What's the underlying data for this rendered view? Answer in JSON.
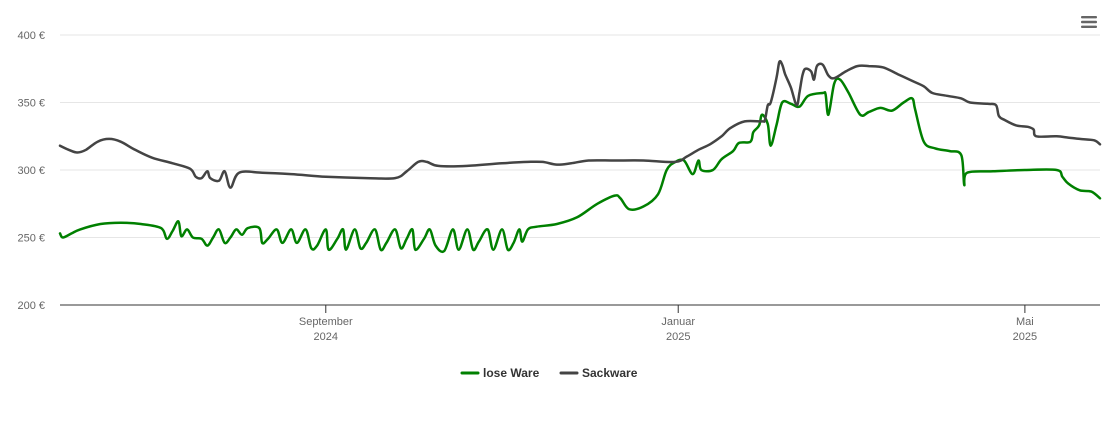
{
  "chart_data": {
    "type": "line",
    "y_axis": {
      "min": 200,
      "max": 400,
      "ticks": [
        200,
        250,
        300,
        350,
        400
      ],
      "unit_suffix": " €"
    },
    "x_axis": {
      "start": "2024-06-01",
      "end": "2025-05-27",
      "ticks": [
        {
          "date": "2024-09-01",
          "label_line1": "September",
          "label_line2": "2024"
        },
        {
          "date": "2025-01-01",
          "label_line1": "Januar",
          "label_line2": "2025"
        },
        {
          "date": "2025-05-01",
          "label_line1": "Mai",
          "label_line2": "2025"
        }
      ]
    },
    "grid": {
      "horizontal": true,
      "vertical": false
    },
    "legend": {
      "position": "bottom-center"
    },
    "series": [
      {
        "name": "lose Ware",
        "color": "#008000",
        "points": [
          [
            "2024-06-01",
            253
          ],
          [
            "2024-06-02",
            250
          ],
          [
            "2024-06-05",
            253
          ],
          [
            "2024-06-08",
            256
          ],
          [
            "2024-06-15",
            260
          ],
          [
            "2024-06-22",
            261
          ],
          [
            "2024-06-29",
            260
          ],
          [
            "2024-07-06",
            257
          ],
          [
            "2024-07-08",
            249
          ],
          [
            "2024-07-10",
            255
          ],
          [
            "2024-07-12",
            262
          ],
          [
            "2024-07-13",
            251
          ],
          [
            "2024-07-15",
            256
          ],
          [
            "2024-07-17",
            250
          ],
          [
            "2024-07-20",
            249
          ],
          [
            "2024-07-22",
            244
          ],
          [
            "2024-07-24",
            250
          ],
          [
            "2024-07-26",
            256
          ],
          [
            "2024-07-28",
            246
          ],
          [
            "2024-07-30",
            250
          ],
          [
            "2024-08-01",
            256
          ],
          [
            "2024-08-03",
            252
          ],
          [
            "2024-08-05",
            257
          ],
          [
            "2024-08-09",
            257
          ],
          [
            "2024-08-10",
            246
          ],
          [
            "2024-08-12",
            249
          ],
          [
            "2024-08-15",
            256
          ],
          [
            "2024-08-17",
            246
          ],
          [
            "2024-08-20",
            256
          ],
          [
            "2024-08-22",
            246
          ],
          [
            "2024-08-25",
            256
          ],
          [
            "2024-08-27",
            242
          ],
          [
            "2024-08-29",
            244
          ],
          [
            "2024-09-01",
            256
          ],
          [
            "2024-09-02",
            241
          ],
          [
            "2024-09-05",
            249
          ],
          [
            "2024-09-07",
            256
          ],
          [
            "2024-09-08",
            241
          ],
          [
            "2024-09-11",
            256
          ],
          [
            "2024-09-13",
            242
          ],
          [
            "2024-09-15",
            246
          ],
          [
            "2024-09-18",
            256
          ],
          [
            "2024-09-20",
            241
          ],
          [
            "2024-09-22",
            246
          ],
          [
            "2024-09-25",
            256
          ],
          [
            "2024-09-27",
            242
          ],
          [
            "2024-09-29",
            249
          ],
          [
            "2024-10-01",
            256
          ],
          [
            "2024-10-02",
            241
          ],
          [
            "2024-10-05",
            249
          ],
          [
            "2024-10-07",
            256
          ],
          [
            "2024-10-09",
            244
          ],
          [
            "2024-10-12",
            240
          ],
          [
            "2024-10-15",
            256
          ],
          [
            "2024-10-17",
            241
          ],
          [
            "2024-10-20",
            256
          ],
          [
            "2024-10-22",
            241
          ],
          [
            "2024-10-24",
            247
          ],
          [
            "2024-10-27",
            256
          ],
          [
            "2024-10-29",
            241
          ],
          [
            "2024-11-01",
            256
          ],
          [
            "2024-11-03",
            241
          ],
          [
            "2024-11-05",
            246
          ],
          [
            "2024-11-07",
            256
          ],
          [
            "2024-11-08",
            247
          ],
          [
            "2024-11-10",
            256
          ],
          [
            "2024-11-13",
            258
          ],
          [
            "2024-11-20",
            260
          ],
          [
            "2024-11-27",
            265
          ],
          [
            "2024-12-04",
            275
          ],
          [
            "2024-12-10",
            281
          ],
          [
            "2024-12-12",
            279
          ],
          [
            "2024-12-15",
            271
          ],
          [
            "2024-12-20",
            273
          ],
          [
            "2024-12-25",
            282
          ],
          [
            "2024-12-28",
            300
          ],
          [
            "2024-12-31",
            306
          ],
          [
            "2025-01-03",
            307
          ],
          [
            "2025-01-06",
            297
          ],
          [
            "2025-01-08",
            307
          ],
          [
            "2025-01-09",
            300
          ],
          [
            "2025-01-13",
            300
          ],
          [
            "2025-01-16",
            308
          ],
          [
            "2025-01-20",
            314
          ],
          [
            "2025-01-22",
            320
          ],
          [
            "2025-01-26",
            321
          ],
          [
            "2025-01-27",
            328
          ],
          [
            "2025-01-29",
            333
          ],
          [
            "2025-01-30",
            341
          ],
          [
            "2025-02-01",
            334
          ],
          [
            "2025-02-02",
            318
          ],
          [
            "2025-02-04",
            333
          ],
          [
            "2025-02-06",
            350
          ],
          [
            "2025-02-09",
            349
          ],
          [
            "2025-02-12",
            347
          ],
          [
            "2025-02-15",
            355
          ],
          [
            "2025-02-20",
            357
          ],
          [
            "2025-02-21",
            356
          ],
          [
            "2025-02-22",
            341
          ],
          [
            "2025-02-24",
            364
          ],
          [
            "2025-02-26",
            367
          ],
          [
            "2025-03-01",
            357
          ],
          [
            "2025-03-05",
            341
          ],
          [
            "2025-03-08",
            343
          ],
          [
            "2025-03-12",
            346
          ],
          [
            "2025-03-16",
            344
          ],
          [
            "2025-03-20",
            350
          ],
          [
            "2025-03-23",
            353
          ],
          [
            "2025-03-24",
            345
          ],
          [
            "2025-03-27",
            321
          ],
          [
            "2025-03-31",
            316
          ],
          [
            "2025-04-05",
            314
          ],
          [
            "2025-04-09",
            311
          ],
          [
            "2025-04-10",
            289
          ],
          [
            "2025-04-11",
            298
          ],
          [
            "2025-04-20",
            299
          ],
          [
            "2025-05-01",
            300
          ],
          [
            "2025-05-12",
            300
          ],
          [
            "2025-05-14",
            295
          ],
          [
            "2025-05-16",
            290
          ],
          [
            "2025-05-20",
            285
          ],
          [
            "2025-05-24",
            284
          ],
          [
            "2025-05-27",
            279
          ]
        ]
      },
      {
        "name": "Sackware",
        "color": "#444444",
        "points": [
          [
            "2024-06-01",
            318
          ],
          [
            "2024-06-04",
            315
          ],
          [
            "2024-06-07",
            313
          ],
          [
            "2024-06-10",
            315
          ],
          [
            "2024-06-14",
            321
          ],
          [
            "2024-06-18",
            323
          ],
          [
            "2024-06-22",
            321
          ],
          [
            "2024-06-27",
            315
          ],
          [
            "2024-07-03",
            309
          ],
          [
            "2024-07-10",
            305
          ],
          [
            "2024-07-16",
            301
          ],
          [
            "2024-07-18",
            295
          ],
          [
            "2024-07-20",
            294
          ],
          [
            "2024-07-22",
            299
          ],
          [
            "2024-07-23",
            294
          ],
          [
            "2024-07-26",
            292
          ],
          [
            "2024-07-28",
            299
          ],
          [
            "2024-07-30",
            287
          ],
          [
            "2024-08-02",
            298
          ],
          [
            "2024-08-10",
            298
          ],
          [
            "2024-08-20",
            297
          ],
          [
            "2024-09-01",
            295
          ],
          [
            "2024-09-15",
            294
          ],
          [
            "2024-09-25",
            294
          ],
          [
            "2024-09-29",
            299
          ],
          [
            "2024-10-03",
            306
          ],
          [
            "2024-10-06",
            306
          ],
          [
            "2024-10-10",
            303
          ],
          [
            "2024-10-20",
            303
          ],
          [
            "2024-11-01",
            305
          ],
          [
            "2024-11-10",
            306
          ],
          [
            "2024-11-15",
            306
          ],
          [
            "2024-11-20",
            304
          ],
          [
            "2024-11-25",
            305
          ],
          [
            "2024-12-01",
            307
          ],
          [
            "2024-12-10",
            307
          ],
          [
            "2024-12-20",
            307
          ],
          [
            "2024-12-31",
            306
          ],
          [
            "2025-01-04",
            310
          ],
          [
            "2025-01-08",
            315
          ],
          [
            "2025-01-12",
            319
          ],
          [
            "2025-01-16",
            325
          ],
          [
            "2025-01-19",
            331
          ],
          [
            "2025-01-24",
            336
          ],
          [
            "2025-01-30",
            336
          ],
          [
            "2025-01-31",
            337
          ],
          [
            "2025-02-01",
            348
          ],
          [
            "2025-02-02",
            350
          ],
          [
            "2025-02-04",
            368
          ],
          [
            "2025-02-05",
            380
          ],
          [
            "2025-02-06",
            378
          ],
          [
            "2025-02-07",
            371
          ],
          [
            "2025-02-09",
            361
          ],
          [
            "2025-02-11",
            348
          ],
          [
            "2025-02-12",
            358
          ],
          [
            "2025-02-13",
            370
          ],
          [
            "2025-02-14",
            375
          ],
          [
            "2025-02-16",
            373
          ],
          [
            "2025-02-17",
            367
          ],
          [
            "2025-02-18",
            377
          ],
          [
            "2025-02-20",
            378
          ],
          [
            "2025-02-22",
            370
          ],
          [
            "2025-02-24",
            368
          ],
          [
            "2025-02-28",
            373
          ],
          [
            "2025-03-04",
            377
          ],
          [
            "2025-03-08",
            377
          ],
          [
            "2025-03-13",
            376
          ],
          [
            "2025-03-18",
            371
          ],
          [
            "2025-03-23",
            366
          ],
          [
            "2025-03-27",
            362
          ],
          [
            "2025-03-30",
            357
          ],
          [
            "2025-04-04",
            355
          ],
          [
            "2025-04-09",
            353
          ],
          [
            "2025-04-12",
            350
          ],
          [
            "2025-04-18",
            349
          ],
          [
            "2025-04-21",
            348
          ],
          [
            "2025-04-22",
            340
          ],
          [
            "2025-04-24",
            337
          ],
          [
            "2025-04-28",
            333
          ],
          [
            "2025-05-02",
            332
          ],
          [
            "2025-05-04",
            330
          ],
          [
            "2025-05-05",
            325
          ],
          [
            "2025-05-12",
            325
          ],
          [
            "2025-05-16",
            324
          ],
          [
            "2025-05-20",
            323
          ],
          [
            "2025-05-25",
            322
          ],
          [
            "2025-05-27",
            319
          ]
        ]
      }
    ]
  },
  "icons": {
    "menu": "hamburger-menu-icon"
  }
}
